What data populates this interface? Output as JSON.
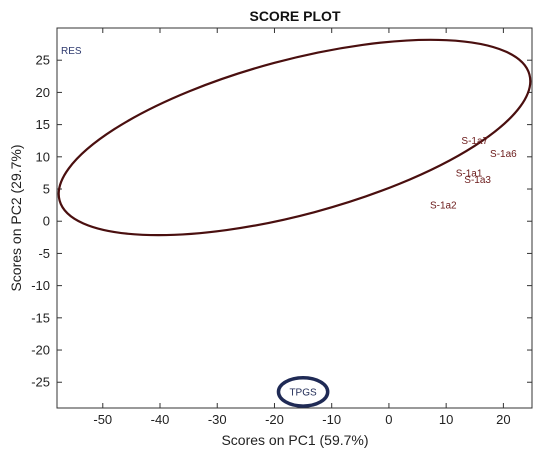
{
  "chart_data": {
    "type": "scatter",
    "title": "SCORE PLOT",
    "xlabel": "Scores on PC1 (59.7%)",
    "ylabel": "Scores on PC2 (29.7%)",
    "xlim": [
      -58,
      25
    ],
    "ylim": [
      -29,
      30
    ],
    "xticks": [
      -50,
      -40,
      -30,
      -20,
      -10,
      0,
      10,
      20
    ],
    "yticks": [
      25,
      20,
      15,
      10,
      5,
      0,
      -5,
      -10,
      -15,
      -20,
      -25
    ],
    "grid": false,
    "colors": {
      "resin_label": "#2e3a6e",
      "sample_labels": "#6b1a1a",
      "group_ellipse": "#4a0f0f",
      "tpgs_ellipse": "#1f2a55",
      "tpgs_label": "#1f2a55"
    },
    "points": [
      {
        "label": "RES",
        "x": -55.5,
        "y": 26.5,
        "color": "#2e3a6e"
      },
      {
        "label": "S-1a7",
        "x": 15,
        "y": 12.5,
        "color": "#6b1a1a"
      },
      {
        "label": "S-1a6",
        "x": 20,
        "y": 10.5,
        "color": "#6b1a1a"
      },
      {
        "label": "S-1a1",
        "x": 14,
        "y": 7.5,
        "color": "#6b1a1a"
      },
      {
        "label": "S-1a3",
        "x": 15.5,
        "y": 6.5,
        "color": "#6b1a1a"
      },
      {
        "label": "S-1a2",
        "x": 9.5,
        "y": 2.5,
        "color": "#6b1a1a"
      },
      {
        "label": "TPGS",
        "x": -15,
        "y": -26.5,
        "color": "#1f2a55"
      }
    ],
    "ellipses": [
      {
        "group": "RES and S-1a samples",
        "cx": -16.5,
        "cy": 13,
        "rx": 42.5,
        "ry": 12,
        "angle_deg": -15,
        "color": "#4a0f0f"
      },
      {
        "group": "TPGS",
        "cx": -15,
        "cy": -26.5,
        "rx": 4.3,
        "ry": 2.2,
        "angle_deg": 0,
        "color": "#1f2a55"
      }
    ]
  }
}
